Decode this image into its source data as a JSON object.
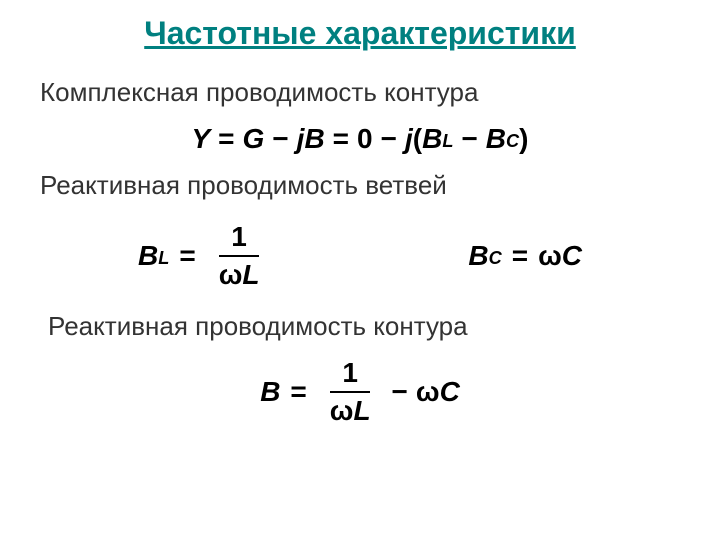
{
  "colors": {
    "title_color": "#008080",
    "text_color": "#333333",
    "equation_color": "#000000",
    "background": "#ffffff"
  },
  "typography": {
    "title_fontsize": 32,
    "subtitle_fontsize": 26,
    "equation_fontsize": 28,
    "title_fontfamily": "Verdana",
    "equation_fontfamily": "Arial",
    "equation_fontweight": "bold",
    "equation_fontstyle": "italic"
  },
  "title": "Частотные характеристики",
  "section1": {
    "label": "Комплексная проводимость контура",
    "equation": {
      "lhs_var": "Y",
      "rhs_part1_var1": "G",
      "rhs_part1_op": "−",
      "rhs_part1_term": "jB",
      "eq": "=",
      "rhs_part2_zero": "0",
      "rhs_part2_op": "−",
      "rhs_part2_j": "j",
      "rhs_part2_open": "(",
      "rhs_part2_BL_base": "B",
      "rhs_part2_BL_sub": "L",
      "rhs_part2_minus": "−",
      "rhs_part2_BC_base": "B",
      "rhs_part2_BC_sub": "C",
      "rhs_part2_close": ")"
    }
  },
  "section2": {
    "label": "Реактивная проводимость ветвей",
    "eq_left": {
      "lhs_base": "B",
      "lhs_sub": "L",
      "eq": "=",
      "frac_num": "1",
      "frac_den_omega": "ω",
      "frac_den_L": "L"
    },
    "eq_right": {
      "lhs_base": "B",
      "lhs_sub": "C",
      "eq": "=",
      "rhs_omega": "ω",
      "rhs_C": "C"
    }
  },
  "section3": {
    "label": "Реактивная проводимость контура",
    "equation": {
      "lhs": "B",
      "eq": "=",
      "frac_num": "1",
      "frac_den_omega": "ω",
      "frac_den_L": "L",
      "minus": "−",
      "omega": "ω",
      "C": "C"
    }
  }
}
